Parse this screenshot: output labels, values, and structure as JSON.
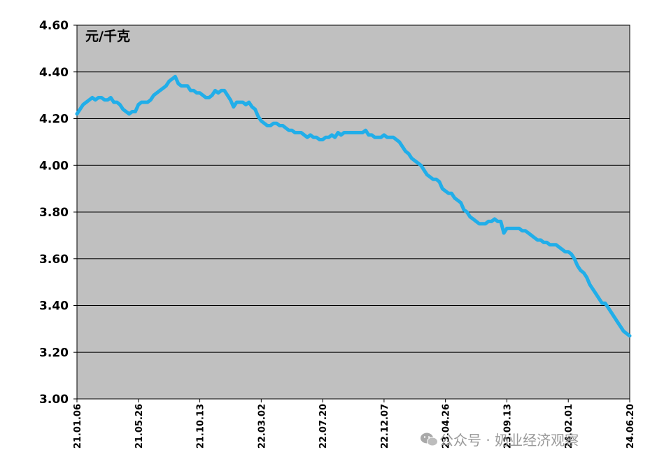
{
  "chart_data": {
    "type": "line",
    "unit_label": "元/千克",
    "ylim": [
      3.0,
      4.6
    ],
    "yticks": [
      "3.00",
      "3.20",
      "3.40",
      "3.60",
      "3.80",
      "4.00",
      "4.20",
      "4.40",
      "4.60"
    ],
    "xticks": [
      "21.01.06",
      "21.05.26",
      "21.10.13",
      "22.03.02",
      "22.07.20",
      "22.12.07",
      "23.04.26",
      "23.09.13",
      "24.02.01",
      "24.06.20"
    ],
    "grid": true,
    "series": [
      {
        "color": "#21aee9",
        "x": [
          "21.01.06",
          "21.01.13",
          "21.01.20",
          "21.01.27",
          "21.02.03",
          "21.02.10",
          "21.02.17",
          "21.02.24",
          "21.03.03",
          "21.03.10",
          "21.03.17",
          "21.03.24",
          "21.03.31",
          "21.04.07",
          "21.04.14",
          "21.04.21",
          "21.04.28",
          "21.05.05",
          "21.05.12",
          "21.05.19",
          "21.05.26",
          "21.06.02",
          "21.06.09",
          "21.06.16",
          "21.06.23",
          "21.06.30",
          "21.07.07",
          "21.07.14",
          "21.07.21",
          "21.07.28",
          "21.08.04",
          "21.08.11",
          "21.08.18",
          "21.08.25",
          "21.09.01",
          "21.09.08",
          "21.09.15",
          "21.09.22",
          "21.09.29",
          "21.10.06",
          "21.10.13",
          "21.10.20",
          "21.10.27",
          "21.11.03",
          "21.11.10",
          "21.11.17",
          "21.11.24",
          "21.12.01",
          "21.12.08",
          "21.12.15",
          "21.12.22",
          "21.12.29",
          "22.01.05",
          "22.01.12",
          "22.01.19",
          "22.01.26",
          "22.02.02",
          "22.02.09",
          "22.02.16",
          "22.02.23",
          "22.03.02",
          "22.03.09",
          "22.03.16",
          "22.03.23",
          "22.03.30",
          "22.04.06",
          "22.04.13",
          "22.04.20",
          "22.04.27",
          "22.05.04",
          "22.05.11",
          "22.05.18",
          "22.05.25",
          "22.06.01",
          "22.06.08",
          "22.06.15",
          "22.06.22",
          "22.06.29",
          "22.07.06",
          "22.07.13",
          "22.07.20",
          "22.07.27",
          "22.08.03",
          "22.08.10",
          "22.08.17",
          "22.08.24",
          "22.08.31",
          "22.09.07",
          "22.09.14",
          "22.09.21",
          "22.09.28",
          "22.10.05",
          "22.10.12",
          "22.10.19",
          "22.10.26",
          "22.11.02",
          "22.11.09",
          "22.11.16",
          "22.11.23",
          "22.11.30",
          "22.12.07",
          "22.12.14",
          "22.12.21",
          "22.12.28",
          "23.01.04",
          "23.01.11",
          "23.01.18",
          "23.01.25",
          "23.02.01",
          "23.02.08",
          "23.02.15",
          "23.02.22",
          "23.03.01",
          "23.03.08",
          "23.03.15",
          "23.03.22",
          "23.03.29",
          "23.04.05",
          "23.04.12",
          "23.04.19",
          "23.04.26",
          "23.05.03",
          "23.05.10",
          "23.05.17",
          "23.05.24",
          "23.05.31",
          "23.06.07",
          "23.06.14",
          "23.06.21",
          "23.06.28",
          "23.07.05",
          "23.07.12",
          "23.07.19",
          "23.07.26",
          "23.08.02",
          "23.08.09",
          "23.08.16",
          "23.08.23",
          "23.08.30",
          "23.09.06",
          "23.09.13",
          "23.09.20",
          "23.09.27",
          "23.10.04",
          "23.10.11",
          "23.10.18",
          "23.10.25",
          "23.11.01",
          "23.11.08",
          "23.11.15",
          "23.11.22",
          "23.11.29",
          "23.12.06",
          "23.12.13",
          "23.12.20",
          "23.12.27",
          "24.01.03",
          "24.01.10",
          "24.01.17",
          "24.01.24",
          "24.01.31",
          "24.02.07",
          "24.02.14",
          "24.02.21",
          "24.02.28",
          "24.03.06",
          "24.03.13",
          "24.03.20",
          "24.03.27",
          "24.04.03",
          "24.04.10",
          "24.04.17",
          "24.04.24",
          "24.05.01",
          "24.05.08",
          "24.05.15",
          "24.05.22",
          "24.05.29",
          "24.06.05",
          "24.06.12",
          "24.06.20"
        ],
        "values": [
          4.22,
          4.24,
          4.26,
          4.27,
          4.28,
          4.29,
          4.28,
          4.29,
          4.29,
          4.28,
          4.28,
          4.29,
          4.27,
          4.27,
          4.26,
          4.24,
          4.23,
          4.22,
          4.23,
          4.23,
          4.26,
          4.27,
          4.27,
          4.27,
          4.28,
          4.3,
          4.31,
          4.32,
          4.33,
          4.34,
          4.36,
          4.37,
          4.38,
          4.35,
          4.34,
          4.34,
          4.34,
          4.32,
          4.32,
          4.31,
          4.31,
          4.3,
          4.29,
          4.29,
          4.3,
          4.32,
          4.31,
          4.32,
          4.32,
          4.3,
          4.28,
          4.25,
          4.27,
          4.27,
          4.27,
          4.26,
          4.27,
          4.25,
          4.24,
          4.21,
          4.19,
          4.18,
          4.17,
          4.17,
          4.18,
          4.18,
          4.17,
          4.17,
          4.16,
          4.15,
          4.15,
          4.14,
          4.14,
          4.14,
          4.13,
          4.12,
          4.13,
          4.12,
          4.12,
          4.11,
          4.11,
          4.12,
          4.12,
          4.13,
          4.12,
          4.14,
          4.13,
          4.14,
          4.14,
          4.14,
          4.14,
          4.14,
          4.14,
          4.14,
          4.15,
          4.13,
          4.13,
          4.12,
          4.12,
          4.12,
          4.13,
          4.12,
          4.12,
          4.12,
          4.11,
          4.1,
          4.08,
          4.06,
          4.05,
          4.03,
          4.02,
          4.01,
          4.0,
          3.98,
          3.96,
          3.95,
          3.94,
          3.94,
          3.93,
          3.9,
          3.89,
          3.88,
          3.88,
          3.86,
          3.85,
          3.84,
          3.81,
          3.8,
          3.78,
          3.77,
          3.76,
          3.75,
          3.75,
          3.75,
          3.76,
          3.76,
          3.77,
          3.76,
          3.76,
          3.71,
          3.73,
          3.73,
          3.73,
          3.73,
          3.73,
          3.72,
          3.72,
          3.71,
          3.7,
          3.69,
          3.68,
          3.68,
          3.67,
          3.67,
          3.66,
          3.66,
          3.66,
          3.65,
          3.64,
          3.63,
          3.63,
          3.62,
          3.6,
          3.57,
          3.55,
          3.54,
          3.52,
          3.49,
          3.47,
          3.45,
          3.43,
          3.41,
          3.41,
          3.39,
          3.37,
          3.35,
          3.33,
          3.31,
          3.29,
          3.28,
          3.27
        ]
      }
    ]
  },
  "watermark": {
    "icon": "wechat-icon",
    "text": "公众号 · 奶业经济观察"
  }
}
